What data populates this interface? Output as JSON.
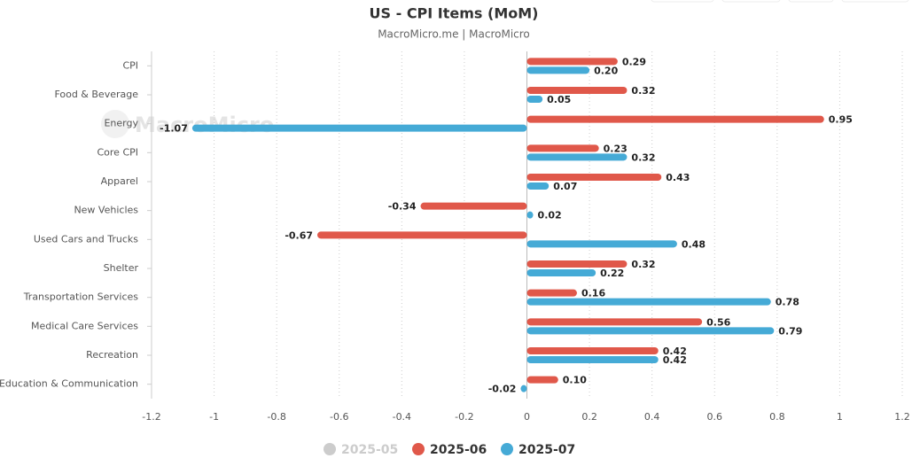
{
  "chart_data": {
    "type": "hbar",
    "title": "US - CPI Items (MoM)",
    "subtitle": "MacroMicro.me | MacroMicro",
    "watermark": "MacroMicro",
    "categories": [
      "CPI",
      "Food & Beverage",
      "Energy",
      "Core CPI",
      "Apparel",
      "New Vehicles",
      "Used Cars and Trucks",
      "Shelter",
      "Transportation Services",
      "Medical Care Services",
      "Recreation",
      "Education & Communication"
    ],
    "series": [
      {
        "name": "2025-05",
        "color": "#cccccc",
        "visible": false
      },
      {
        "name": "2025-06",
        "color": "#e0584a",
        "visible": true,
        "values": [
          0.29,
          0.32,
          0.95,
          0.23,
          0.43,
          -0.34,
          -0.67,
          0.32,
          0.16,
          0.56,
          0.42,
          0.1
        ],
        "value_labels": [
          "0.29",
          "0.32",
          "0.95",
          "0.23",
          "0.43",
          "-0.34",
          "-0.67",
          "0.32",
          "0.16",
          "0.56",
          "0.42",
          "0.10"
        ]
      },
      {
        "name": "2025-07",
        "color": "#45aad6",
        "visible": true,
        "values": [
          0.2,
          0.05,
          -1.07,
          0.32,
          0.07,
          0.02,
          0.48,
          0.22,
          0.78,
          0.79,
          0.42,
          -0.02
        ],
        "value_labels": [
          "0.20",
          "0.05",
          "-1.07",
          "0.32",
          "0.07",
          "0.02",
          "0.48",
          "0.22",
          "0.78",
          "0.79",
          "0.42",
          "-0.02"
        ]
      }
    ],
    "xlim": [
      -1.2,
      1.2
    ],
    "xticks": [
      -1.2,
      -1,
      -0.8,
      -0.6,
      -0.4,
      -0.2,
      0,
      0.2,
      0.4,
      0.6,
      0.8,
      1,
      1.2
    ],
    "grid": true
  }
}
